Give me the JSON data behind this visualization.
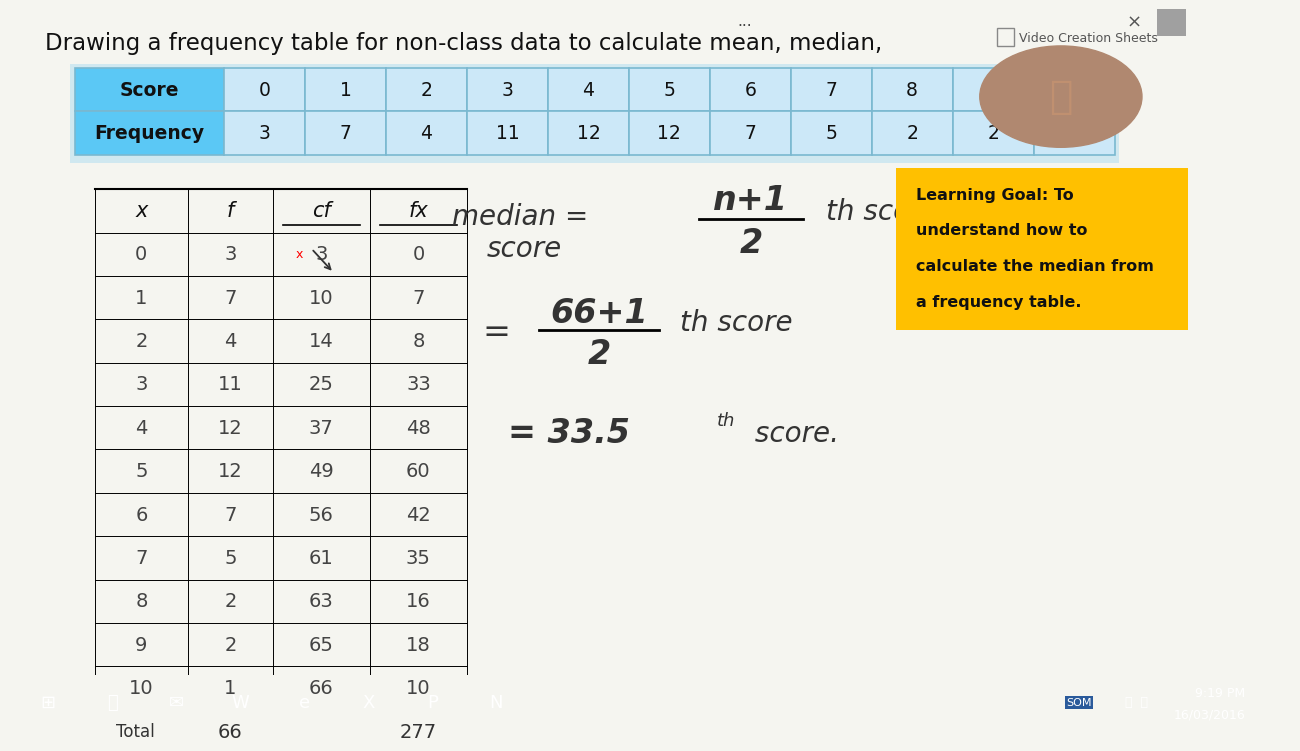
{
  "title": "Drawing a frequency table for non-class data to calculate mean, median,",
  "scores": [
    0,
    1,
    2,
    3,
    4,
    5,
    6,
    7,
    8,
    9,
    10
  ],
  "frequencies": [
    3,
    7,
    4,
    11,
    12,
    12,
    7,
    5,
    2,
    2,
    1
  ],
  "cum_freq": [
    3,
    10,
    14,
    25,
    37,
    49,
    56,
    61,
    63,
    65,
    66
  ],
  "fx": [
    0,
    7,
    8,
    33,
    48,
    60,
    42,
    35,
    16,
    18,
    10
  ],
  "total_f": 66,
  "total_fx": 277,
  "main_bg": "#f5f5f0",
  "content_bg": "#ffffff",
  "table_header_bg": "#5bc8f5",
  "table_cell_bg": "#cce8f8",
  "table_outer_bg": "#d0e8f0",
  "learning_goal_bg": "#FFC000",
  "taskbar_bg": "#1a3a6b",
  "scrollbar_bg": "#c8c8c8",
  "right_panel_bg": "#d8d0c8",
  "webcam_bg": "#888880"
}
